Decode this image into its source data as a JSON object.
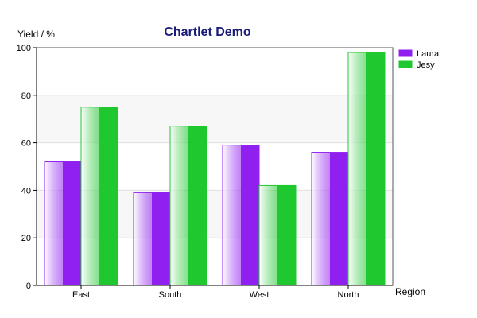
{
  "chart_data": {
    "type": "bar",
    "title": "Chartlet Demo",
    "ylabel": "Yield / %",
    "xlabel": "Region",
    "categories": [
      "East",
      "South",
      "West",
      "North"
    ],
    "series": [
      {
        "name": "Laura",
        "values": [
          52,
          39,
          59,
          56
        ],
        "color": "#9020f0"
      },
      {
        "name": "Jesy",
        "values": [
          75,
          67,
          42,
          98
        ],
        "color": "#20c830"
      }
    ],
    "ylim": [
      0,
      100
    ],
    "yticks": [
      0,
      20,
      40,
      60,
      80,
      100
    ],
    "grid": true,
    "legend": "top-right",
    "title_color": "#1a1a7a"
  }
}
